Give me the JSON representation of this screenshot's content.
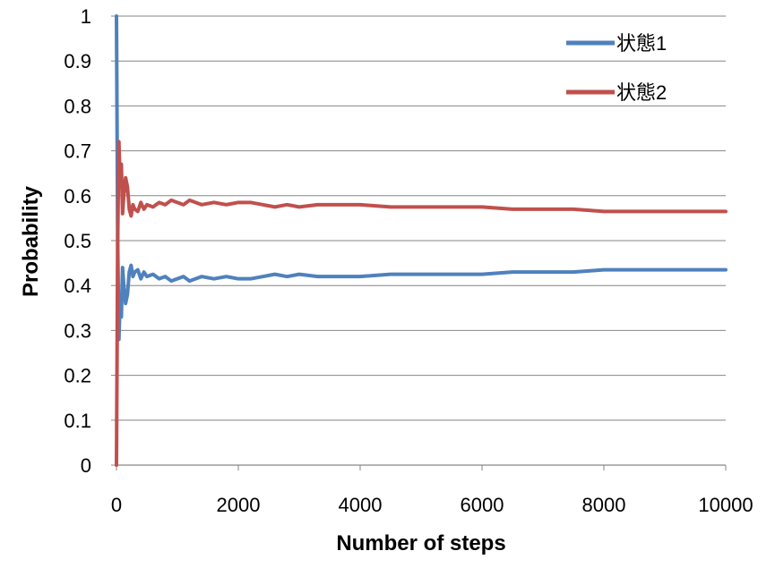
{
  "chart_data": {
    "type": "line",
    "title": "",
    "xlabel": "Number of steps",
    "ylabel": "Probability",
    "xlim": [
      0,
      10000
    ],
    "ylim": [
      0,
      1
    ],
    "x_ticks": [
      "0",
      "2000",
      "4000",
      "6000",
      "8000",
      "10000"
    ],
    "y_ticks": [
      "0",
      "0.1",
      "0.2",
      "0.3",
      "0.4",
      "0.5",
      "0.6",
      "0.7",
      "0.8",
      "0.9",
      "1"
    ],
    "grid": "horizontal",
    "legend_position": "top-right",
    "series": [
      {
        "name": "状態1",
        "color": "#4F81BD",
        "x": [
          0,
          20,
          40,
          60,
          80,
          100,
          120,
          150,
          180,
          210,
          240,
          270,
          300,
          350,
          400,
          450,
          500,
          600,
          700,
          800,
          900,
          1000,
          1100,
          1200,
          1400,
          1600,
          1800,
          2000,
          2200,
          2400,
          2600,
          2800,
          3000,
          3300,
          3600,
          4000,
          4500,
          5000,
          5500,
          6000,
          6500,
          7000,
          7500,
          8000,
          8500,
          9000,
          9500,
          10000
        ],
        "y": [
          1.0,
          0.5,
          0.28,
          0.37,
          0.33,
          0.44,
          0.4,
          0.36,
          0.38,
          0.43,
          0.445,
          0.42,
          0.43,
          0.435,
          0.415,
          0.43,
          0.42,
          0.425,
          0.415,
          0.42,
          0.41,
          0.415,
          0.42,
          0.41,
          0.42,
          0.415,
          0.42,
          0.415,
          0.415,
          0.42,
          0.425,
          0.42,
          0.425,
          0.42,
          0.42,
          0.42,
          0.425,
          0.425,
          0.425,
          0.425,
          0.43,
          0.43,
          0.43,
          0.435,
          0.435,
          0.435,
          0.435,
          0.435
        ]
      },
      {
        "name": "状態2",
        "color": "#C0504D",
        "x": [
          0,
          20,
          40,
          60,
          80,
          100,
          120,
          150,
          180,
          210,
          240,
          270,
          300,
          350,
          400,
          450,
          500,
          600,
          700,
          800,
          900,
          1000,
          1100,
          1200,
          1400,
          1600,
          1800,
          2000,
          2200,
          2400,
          2600,
          2800,
          3000,
          3300,
          3600,
          4000,
          4500,
          5000,
          5500,
          6000,
          6500,
          7000,
          7500,
          8000,
          8500,
          9000,
          9500,
          10000
        ],
        "y": [
          0.0,
          0.5,
          0.72,
          0.63,
          0.67,
          0.56,
          0.6,
          0.64,
          0.62,
          0.57,
          0.555,
          0.58,
          0.57,
          0.565,
          0.585,
          0.57,
          0.58,
          0.575,
          0.585,
          0.58,
          0.59,
          0.585,
          0.58,
          0.59,
          0.58,
          0.585,
          0.58,
          0.585,
          0.585,
          0.58,
          0.575,
          0.58,
          0.575,
          0.58,
          0.58,
          0.58,
          0.575,
          0.575,
          0.575,
          0.575,
          0.57,
          0.57,
          0.57,
          0.565,
          0.565,
          0.565,
          0.565,
          0.565
        ]
      }
    ]
  }
}
